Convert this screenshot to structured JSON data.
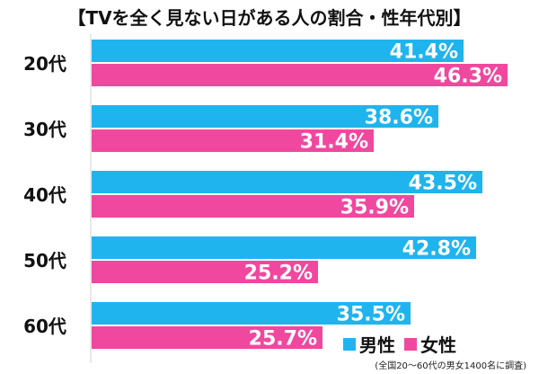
{
  "chart_data": {
    "type": "bar",
    "orientation": "horizontal",
    "title": "【TVを全く見ない日がある人の割合・性年代別】",
    "categories": [
      "20代",
      "30代",
      "40代",
      "50代",
      "60代"
    ],
    "series": [
      {
        "name": "男性",
        "color": "#1fb4ee",
        "values": [
          41.4,
          38.6,
          43.5,
          42.8,
          35.5
        ],
        "labels": [
          "41.4%",
          "38.6%",
          "43.5%",
          "42.8%",
          "35.5%"
        ]
      },
      {
        "name": "女性",
        "color": "#f0489e",
        "values": [
          46.3,
          31.4,
          35.9,
          25.2,
          25.7
        ],
        "labels": [
          "46.3%",
          "31.4%",
          "35.9%",
          "25.2%",
          "25.7%"
        ]
      }
    ],
    "xlim": [
      0,
      100
    ],
    "legend_position": "bottom-right",
    "note": "(全国20〜60代の男女1400名に調査)"
  }
}
